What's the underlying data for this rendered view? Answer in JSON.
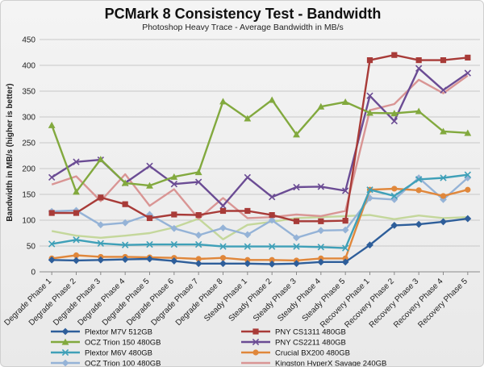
{
  "chart_data": {
    "type": "line",
    "title": "PCMark 8 Consistency Test - Bandwidth",
    "subtitle": "Photoshop Heavy Trace - Average Bandwidth in MB/s",
    "xlabel": "",
    "ylabel": "Bandwidth in MB/s (higher is better)",
    "ylim": [
      0,
      450
    ],
    "yticks": [
      0,
      50,
      100,
      150,
      200,
      250,
      300,
      350,
      400,
      450
    ],
    "grid": true,
    "legend_position": "bottom",
    "categories": [
      "Degrade Phase 1",
      "Degrade Phase 2",
      "Degrade Phase 3",
      "Degrade Phase 4",
      "Degrade Phase 5",
      "Degrade Phase 6",
      "Degrade Phase 7",
      "Degrade Phase 8",
      "Steady Phase 1",
      "Steady Phase 2",
      "Steady Phase 3",
      "Steady Phase 4",
      "Steady Phase 5",
      "Recovery Phase 1",
      "Recovery Phase 2",
      "Recovery Phase 3",
      "Recovery Phase 4",
      "Recovery Phase 5"
    ],
    "series": [
      {
        "name": "Plextor M7V 512GB",
        "color": "#2e5e9a",
        "marker": "diamond",
        "values": [
          23,
          22,
          23,
          24,
          25,
          21,
          16,
          16,
          16,
          15,
          16,
          19,
          19,
          52,
          90,
          92,
          97,
          103
        ]
      },
      {
        "name": "PNY CS1311 480GB",
        "color": "#a83b38",
        "marker": "square",
        "values": [
          114,
          114,
          144,
          131,
          104,
          111,
          110,
          118,
          118,
          110,
          98,
          98,
          99,
          410,
          420,
          410,
          410,
          415
        ]
      },
      {
        "name": "OCZ Trion 150 480GB",
        "color": "#82a93e",
        "marker": "triangle",
        "values": [
          284,
          155,
          218,
          172,
          167,
          184,
          193,
          330,
          297,
          333,
          266,
          320,
          329,
          308,
          307,
          311,
          272,
          269
        ]
      },
      {
        "name": "PNY CS2211 480GB",
        "color": "#6b4c94",
        "marker": "x",
        "values": [
          183,
          213,
          217,
          172,
          205,
          170,
          174,
          128,
          183,
          145,
          164,
          165,
          157,
          341,
          292,
          394,
          352,
          385
        ]
      },
      {
        "name": "Plextor M6V 480GB",
        "color": "#3fa0b8",
        "marker": "x",
        "values": [
          54,
          62,
          55,
          52,
          53,
          53,
          53,
          49,
          49,
          49,
          49,
          48,
          46,
          159,
          147,
          179,
          182,
          188
        ]
      },
      {
        "name": "Crucial BX200 480GB",
        "color": "#e0873b",
        "marker": "circle",
        "values": [
          26,
          32,
          29,
          29,
          28,
          27,
          25,
          27,
          23,
          23,
          22,
          26,
          26,
          159,
          161,
          158,
          147,
          159
        ]
      },
      {
        "name": "OCZ Trion 100 480GB",
        "color": "#95b3d7",
        "marker": "diamond",
        "values": [
          117,
          119,
          91,
          95,
          111,
          84,
          71,
          85,
          72,
          100,
          66,
          80,
          81,
          143,
          140,
          182,
          140,
          182
        ]
      },
      {
        "name": "Kingston HyperX Savage 240GB",
        "color": "#d99594",
        "marker": "none",
        "values": [
          169,
          185,
          137,
          189,
          128,
          160,
          103,
          143,
          104,
          106,
          111,
          108,
          118,
          313,
          325,
          372,
          346,
          380
        ]
      },
      {
        "name": "",
        "color": "#c4d79b",
        "marker": "none",
        "values": [
          79,
          70,
          66,
          70,
          75,
          86,
          103,
          63,
          91,
          97,
          104,
          106,
          108,
          110,
          102,
          109,
          104,
          106
        ]
      }
    ]
  }
}
